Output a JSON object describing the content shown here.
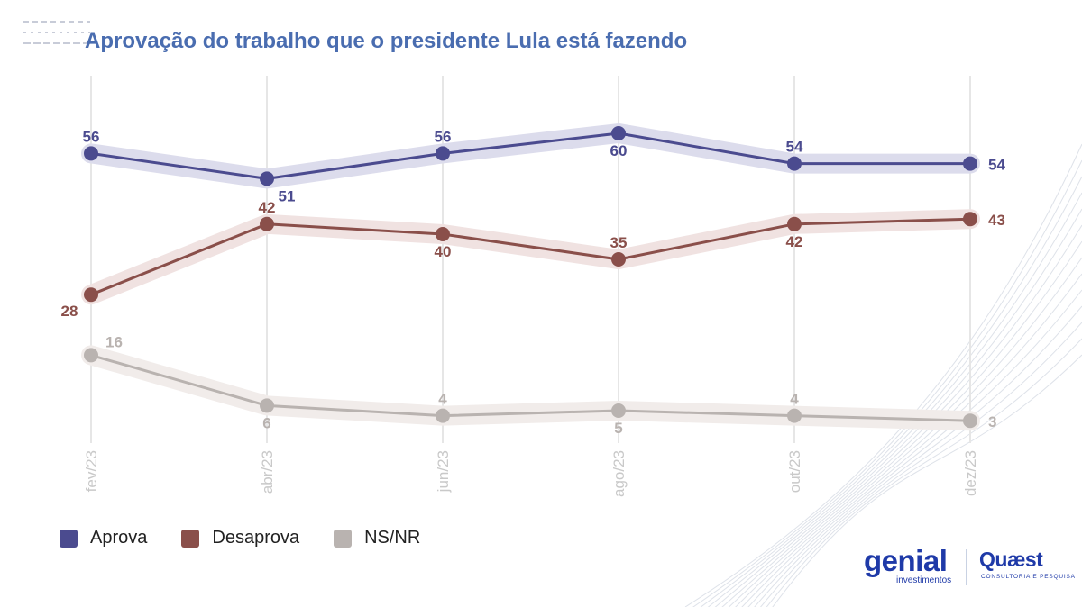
{
  "title": "Aprovação do trabalho que o presidente Lula está fazendo",
  "chart_data": {
    "type": "line",
    "title": "Aprovação do trabalho que o presidente Lula está fazendo",
    "categories": [
      "fev/23",
      "abr/23",
      "jun/23",
      "ago/23",
      "out/23",
      "dez/23"
    ],
    "series": [
      {
        "name": "Aprova",
        "values": [
          56,
          51,
          56,
          60,
          54,
          54
        ],
        "color": "#4b4b8f",
        "band": "#dcdcec",
        "label_pos": [
          "above",
          "below",
          "above",
          "below",
          "above",
          "right"
        ]
      },
      {
        "name": "Desaprova",
        "values": [
          28,
          42,
          40,
          35,
          42,
          43
        ],
        "color": "#8a4f4a",
        "band": "#f0e2e1",
        "label_pos": [
          "below",
          "above",
          "below",
          "above",
          "below",
          "right"
        ]
      },
      {
        "name": "NS/NR",
        "values": [
          16,
          6,
          4,
          5,
          4,
          3
        ],
        "color": "#b9b3b0",
        "band": "#f1ecea",
        "label_pos": [
          "above-right",
          "below",
          "above",
          "below",
          "above",
          "right"
        ]
      }
    ],
    "ylim": [
      0,
      65
    ],
    "xlabel": "",
    "ylabel": "",
    "grid": "vertical",
    "legend": "bottom-left"
  },
  "legend": {
    "items": [
      {
        "label": "Aprova",
        "color": "#4b4b8f"
      },
      {
        "label": "Desaprova",
        "color": "#8a4f4a"
      },
      {
        "label": "NS/NR",
        "color": "#b9b3b0"
      }
    ]
  },
  "logos": {
    "genial_name": "genial",
    "genial_sub": "investimentos",
    "quaest_name": "Quæst",
    "quaest_sub": "CONSULTORIA E PESQUISA"
  }
}
